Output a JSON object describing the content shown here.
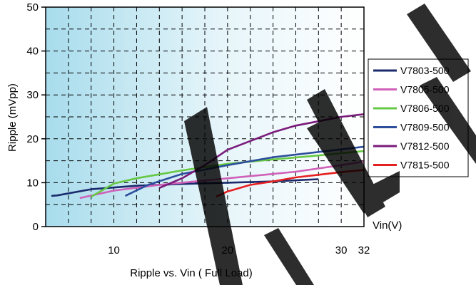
{
  "chart_data": {
    "type": "line",
    "xlabel": "Vin(V)",
    "ylabel": "Ripple (mVpp)",
    "caption": "Ripple vs. Vin ( Full Load)",
    "xlim": [
      4,
      32
    ],
    "ylim": [
      0,
      50
    ],
    "x_ticks": [
      {
        "value": 10,
        "label": "10"
      },
      {
        "value": 20,
        "label": "20"
      },
      {
        "value": 30,
        "label": "30"
      },
      {
        "value": 32,
        "label": "32"
      }
    ],
    "y_ticks": [
      {
        "value": 0,
        "label": "0"
      },
      {
        "value": 10,
        "label": "10"
      },
      {
        "value": 20,
        "label": "20"
      },
      {
        "value": 30,
        "label": "30"
      },
      {
        "value": 40,
        "label": "40"
      },
      {
        "value": 50,
        "label": "50"
      }
    ],
    "x_grid": [
      4,
      6,
      8,
      10,
      12,
      14,
      16,
      18,
      20,
      22,
      24,
      26,
      28,
      30,
      32
    ],
    "y_grid": [
      5,
      10,
      15,
      20,
      25,
      30,
      35,
      40,
      45,
      50
    ],
    "grid": true,
    "legend_position": "right",
    "series": [
      {
        "name": "V7803-500",
        "color": "#1a2a6c",
        "points": [
          [
            4.5,
            7
          ],
          [
            5,
            7.1
          ],
          [
            8,
            8.5
          ],
          [
            12,
            9.3
          ],
          [
            16,
            9.7
          ],
          [
            20,
            10
          ],
          [
            24,
            10.3
          ],
          [
            28,
            10.8
          ]
        ]
      },
      {
        "name": "V7805-500",
        "color": "#d060b8",
        "points": [
          [
            7,
            6.5
          ],
          [
            10,
            8.2
          ],
          [
            14,
            9.5
          ],
          [
            18,
            10.5
          ],
          [
            22,
            11.5
          ],
          [
            26,
            12.5
          ],
          [
            30,
            14
          ],
          [
            32,
            14.8
          ]
        ]
      },
      {
        "name": "V7806-500",
        "color": "#66c844",
        "points": [
          [
            8,
            6.8
          ],
          [
            10,
            9.8
          ],
          [
            12,
            11
          ],
          [
            16,
            12.8
          ],
          [
            20,
            14.3
          ],
          [
            24,
            15.3
          ],
          [
            28,
            16.2
          ],
          [
            32,
            17.2
          ]
        ]
      },
      {
        "name": "V7809-500",
        "color": "#2c4e9c",
        "points": [
          [
            11,
            7
          ],
          [
            13,
            9.5
          ],
          [
            16,
            12
          ],
          [
            20,
            14
          ],
          [
            24,
            15.8
          ],
          [
            28,
            17
          ],
          [
            32,
            18.2
          ]
        ]
      },
      {
        "name": "V7812-500",
        "color": "#7a1a7a",
        "points": [
          [
            14,
            8.8
          ],
          [
            16,
            11
          ],
          [
            18,
            14
          ],
          [
            20,
            17.5
          ],
          [
            22,
            19.5
          ],
          [
            24,
            21.5
          ],
          [
            26,
            23
          ],
          [
            28,
            24
          ],
          [
            30,
            25
          ],
          [
            32,
            25.6
          ]
        ]
      },
      {
        "name": "V7815-500",
        "color": "#e62020",
        "points": [
          [
            19,
            6.8
          ],
          [
            20,
            8
          ],
          [
            22,
            9.5
          ],
          [
            24,
            10.3
          ],
          [
            26,
            11.2
          ],
          [
            28,
            11.8
          ],
          [
            30,
            12.4
          ],
          [
            32,
            12.9
          ]
        ]
      }
    ]
  }
}
